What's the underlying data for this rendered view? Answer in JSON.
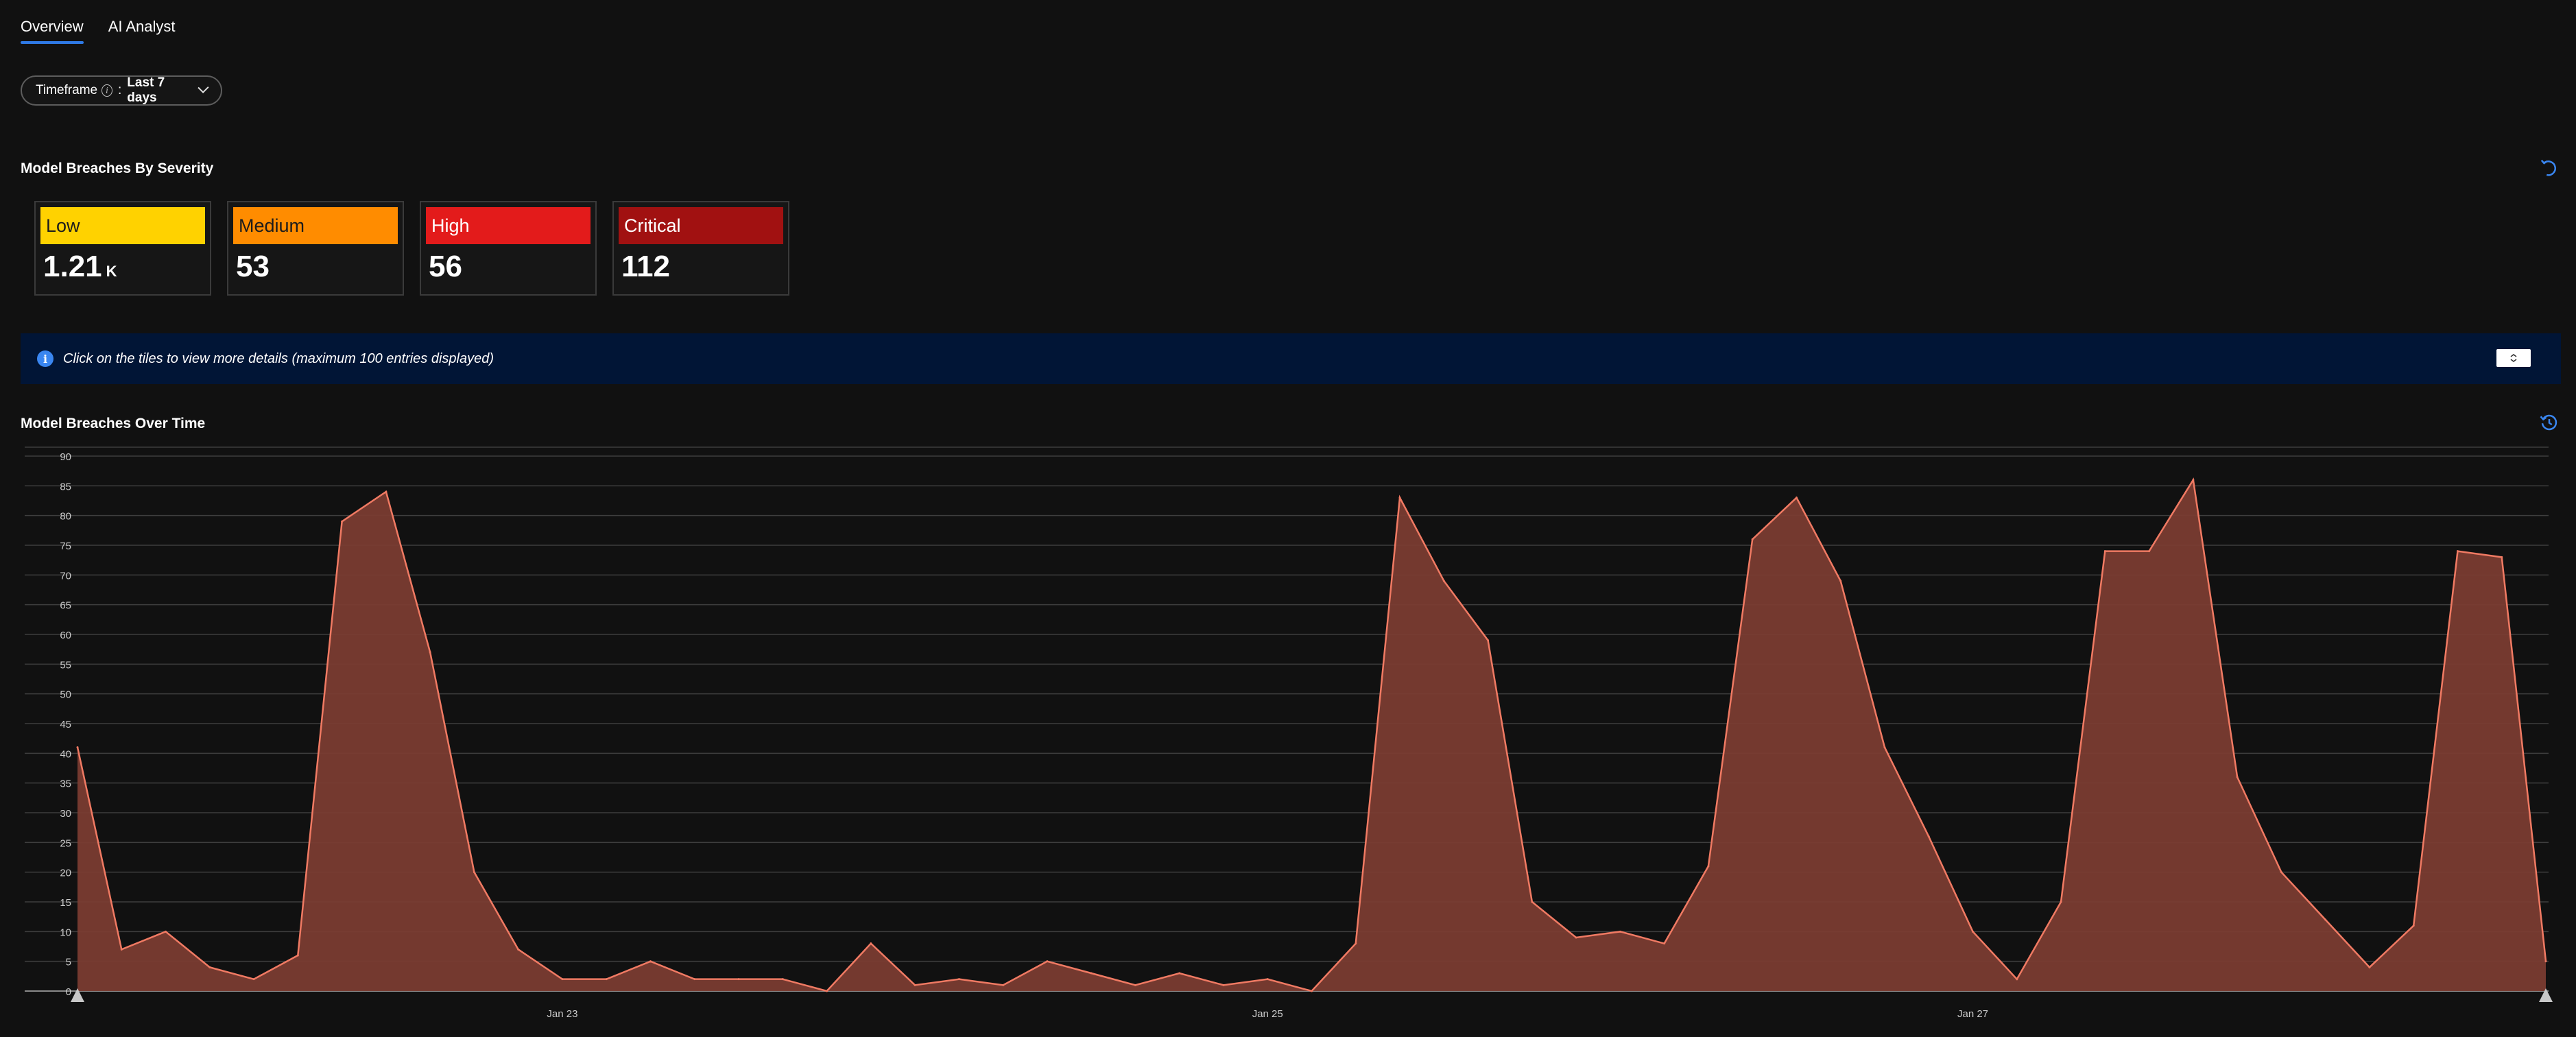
{
  "tabs": [
    {
      "label": "Overview",
      "active": true
    },
    {
      "label": "AI Analyst",
      "active": false
    }
  ],
  "timeframe": {
    "label": "Timeframe",
    "separator": ":",
    "value": "Last 7 days"
  },
  "sections": {
    "severity_title": "Model Breaches By Severity",
    "over_time_title": "Model Breaches Over Time"
  },
  "tiles": [
    {
      "label": "Low",
      "value": "1.21",
      "unit": "K",
      "color": "#ffd200",
      "text_color": "#1c1c1c"
    },
    {
      "label": "Medium",
      "value": "53",
      "unit": "",
      "color": "#ff8c00",
      "text_color": "#1c1c1c"
    },
    {
      "label": "High",
      "value": "56",
      "unit": "",
      "color": "#e31b1b",
      "text_color": "#ffffff"
    },
    {
      "label": "Critical",
      "value": "112",
      "unit": "",
      "color": "#a11111",
      "text_color": "#ffffff"
    }
  ],
  "banner": {
    "text": "Click on the tiles to view more details (maximum 100 entries displayed)"
  },
  "colors": {
    "accent": "#2f7ae5",
    "area_fill": "#7a3c31",
    "area_stroke": "#f07a63",
    "banner_bg": "#011536"
  },
  "chart_data": {
    "type": "area",
    "title": "Model Breaches Over Time",
    "xlabel": "",
    "ylabel": "",
    "ylim": [
      0,
      90
    ],
    "yticks": [
      0,
      5,
      10,
      15,
      20,
      25,
      30,
      35,
      40,
      45,
      50,
      55,
      60,
      65,
      70,
      75,
      80,
      85,
      90
    ],
    "xticks": [
      {
        "index": 11,
        "label": "Jan 23"
      },
      {
        "index": 27,
        "label": "Jan 25"
      },
      {
        "index": 43,
        "label": "Jan 27"
      }
    ],
    "grid": true,
    "series": [
      {
        "values": [
          41,
          7,
          10,
          4,
          2,
          6,
          79,
          84,
          57,
          20,
          7,
          2,
          2,
          5,
          2,
          2,
          2,
          0,
          8,
          1,
          2,
          1,
          5,
          3,
          1,
          3,
          1,
          2,
          0,
          8,
          83,
          69,
          59,
          15,
          9,
          10,
          8,
          21,
          76,
          83,
          69,
          41,
          26,
          10,
          2,
          15,
          74,
          74,
          86,
          36,
          20,
          12,
          4,
          11,
          74,
          73,
          5
        ]
      }
    ]
  }
}
